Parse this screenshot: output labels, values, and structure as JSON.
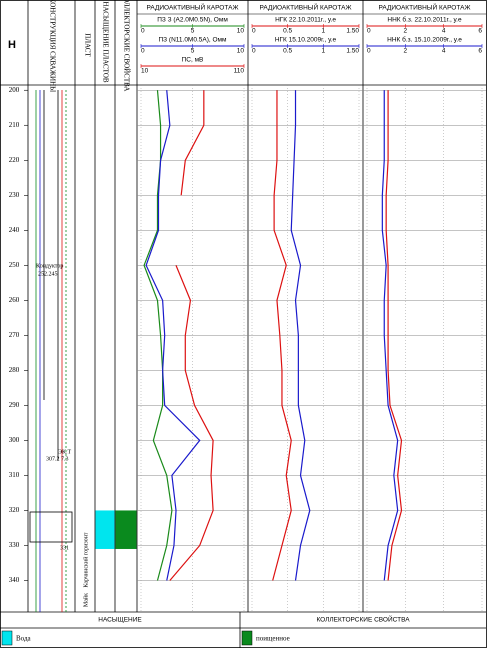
{
  "header": {
    "depth": "Н",
    "construction": "КОНСТРУКЦИЯ СКВАЖИНЫ",
    "layer": "ПЛАСТ",
    "saturation": "НАСЫЩЕНИЕ ПЛАСТОВ",
    "collector": "КОЛЛЕКТОРСКИЕ СВОЙСТВА"
  },
  "depth": {
    "lim": [
      198.5,
      349
    ],
    "samples": [
      200,
      210,
      220,
      230,
      240,
      250,
      260,
      270,
      280,
      290,
      300,
      310,
      320,
      330,
      340
    ],
    "ticks": [
      200,
      210,
      220,
      230,
      240,
      250,
      260,
      270,
      280,
      290,
      300,
      310,
      320,
      330,
      340
    ]
  },
  "tracks": [
    {
      "title": "РАДИОАКТИВНЫЙ КАРОТАЖ",
      "curves": [
        {
          "name": "ПЗ З (А2.0М0.5N), Омм",
          "color": "#1a8a1a",
          "xlim": [
            0,
            10
          ],
          "ticks": [
            0,
            5,
            10
          ],
          "values": [
            1.6,
            1.9,
            1.9,
            1.6,
            1.6,
            0.3,
            1.6,
            1.9,
            2.1,
            2.1,
            1.2,
            2.5,
            3.0,
            2.5,
            1.6
          ]
        },
        {
          "name": "ПЗ (N11.0М0.5А), Омм",
          "color": "#1a1acc",
          "xlim": [
            0,
            10
          ],
          "ticks": [
            0,
            5,
            10
          ],
          "values": [
            2.5,
            2.8,
            1.9,
            1.7,
            1.7,
            0.5,
            2.1,
            2.3,
            2.1,
            2.3,
            5.7,
            3.0,
            3.4,
            3.2,
            2.5
          ]
        },
        {
          "name": "ПС, мВ",
          "color": "#dd1111",
          "xlim": [
            10,
            110
          ],
          "ticks": [
            10,
            110
          ],
          "values": [
            71,
            71,
            53,
            49,
            null,
            44,
            58,
            53,
            53,
            62,
            80,
            78,
            80,
            67,
            38
          ]
        }
      ]
    },
    {
      "title": "РАДИОАКТИВНЫЙ КАРОТАЖ",
      "curves": [
        {
          "name": "НГК 22.10.2011г., у.е",
          "color": "#dd1111",
          "xlim": [
            0,
            1.5
          ],
          "ticks": [
            0,
            0.5,
            1,
            {
              "value": 1.5,
              "label": "1.50"
            }
          ],
          "values": [
            0.35,
            0.35,
            0.35,
            0.31,
            0.31,
            0.48,
            0.35,
            0.39,
            0.42,
            0.42,
            0.55,
            0.48,
            0.55,
            0.42,
            0.29
          ]
        },
        {
          "name": "НГК 15.10.2009г., у.е",
          "color": "#1a1acc",
          "xlim": [
            0,
            1.5
          ],
          "ticks": [
            0,
            0.5,
            1,
            {
              "value": 1.5,
              "label": "1.50"
            }
          ],
          "values": [
            0.61,
            0.61,
            0.59,
            0.57,
            0.55,
            0.68,
            0.61,
            0.65,
            0.65,
            0.65,
            0.74,
            0.68,
            0.81,
            0.68,
            0.61
          ]
        }
      ]
    },
    {
      "title": "РАДИОАКТИВНЫЙ КАРОТАЖ",
      "curves": [
        {
          "name": "ННК б.з. 22.10.2011г., у.е",
          "color": "#dd1111",
          "xlim": [
            0,
            6
          ],
          "ticks": [
            0,
            2,
            4,
            6
          ],
          "values": [
            1.1,
            1.1,
            1.1,
            1.0,
            1.0,
            1.1,
            1.1,
            1.1,
            1.1,
            1.2,
            1.8,
            1.6,
            1.8,
            1.3,
            1.1
          ]
        },
        {
          "name": "ННК б.з. 15.10.2009г., у.е",
          "color": "#1a1acc",
          "xlim": [
            0,
            6
          ],
          "ticks": [
            0,
            2,
            4,
            6
          ],
          "values": [
            0.9,
            0.9,
            0.9,
            0.8,
            0.8,
            1.0,
            0.9,
            0.9,
            1.0,
            1.1,
            1.6,
            1.4,
            1.6,
            1.1,
            0.9
          ]
        }
      ]
    }
  ],
  "intervals": [
    {
      "column": "saturation",
      "top": 320,
      "bottom": 331,
      "color": "#00e5ee"
    },
    {
      "column": "collector",
      "top": 320,
      "bottom": 331,
      "color": "#0a8a1e"
    }
  ],
  "annotations": {
    "conductor": "Кондуктор",
    "conductor_depth": "252.245",
    "casing": "ЭК.Т",
    "casing_depth": "307.2 7.3",
    "bottom": "331",
    "formation": "Карчинский горизонт",
    "formation2": "Майк"
  },
  "footer": {
    "saturation": "НАСЫЩЕНИЕ",
    "collector": "КОЛЛЕКТОРСКИЕ СВОЙСТВА"
  },
  "legend": [
    {
      "label": "Вода",
      "color": "#00e5ee"
    },
    {
      "label": "поищенное",
      "color": "#0a8a1e"
    }
  ]
}
